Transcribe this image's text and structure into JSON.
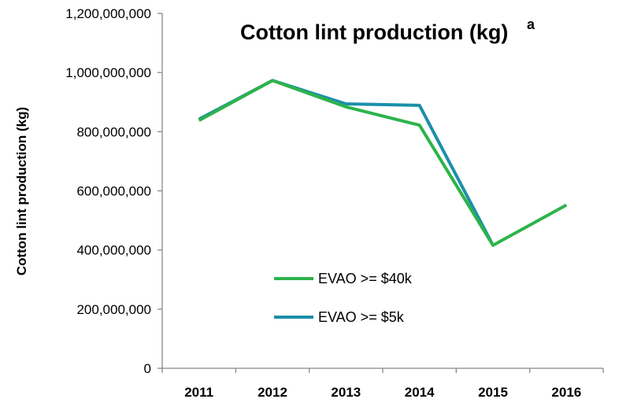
{
  "chart_data": {
    "type": "line",
    "title": "Cotton lint production (kg)",
    "title_superscript": "a",
    "xlabel": "",
    "ylabel": "Cotton lint production (kg)",
    "categories": [
      "2011",
      "2012",
      "2013",
      "2014",
      "2015",
      "2016"
    ],
    "y_tick_labels": [
      "0",
      "200,000,000",
      "400,000,000",
      "600,000,000",
      "800,000,000",
      "1,000,000,000",
      "1,200,000,000"
    ],
    "ylim": [
      0,
      1200000000
    ],
    "grid": false,
    "legend_position": "lower-center",
    "series": [
      {
        "name": "EVAO >= $40k",
        "color": "#2DB34A",
        "values": [
          838000000,
          973000000,
          884000000,
          822000000,
          416000000,
          552000000
        ]
      },
      {
        "name": "EVAO >= $5k",
        "color": "#1B8FAA",
        "values": [
          842000000,
          973000000,
          894000000,
          889000000,
          416000000,
          null
        ]
      }
    ]
  }
}
